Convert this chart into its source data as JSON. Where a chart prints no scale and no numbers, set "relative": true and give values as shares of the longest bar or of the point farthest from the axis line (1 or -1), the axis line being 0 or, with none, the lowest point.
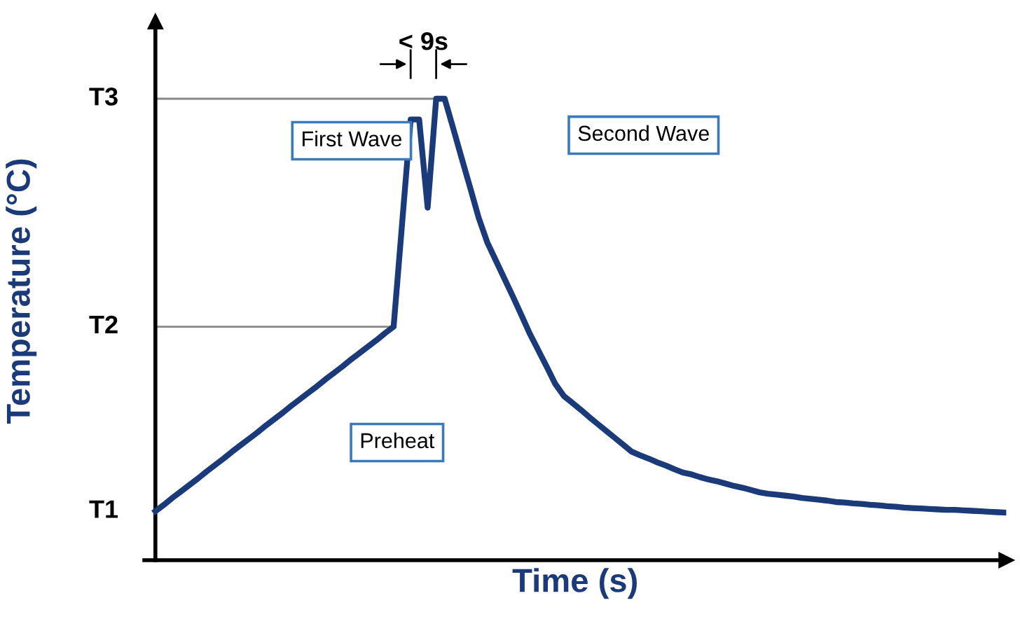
{
  "chart_data": {
    "type": "line",
    "relative": true,
    "xlabel": "Time (s)",
    "ylabel": "Temperature (°C)",
    "categories": [
      null,
      null,
      null,
      null,
      null,
      null,
      null,
      null,
      null,
      null,
      null,
      null,
      null,
      null,
      null,
      null,
      null,
      null,
      null,
      null,
      null,
      null,
      null,
      null,
      null,
      null,
      null,
      null,
      null,
      null,
      null,
      null,
      null,
      null,
      null,
      null,
      null,
      null,
      null,
      null,
      null,
      null,
      null,
      null,
      null,
      null,
      null,
      null,
      null,
      null,
      null,
      null,
      null,
      null,
      null,
      null,
      null,
      null,
      null,
      null,
      null,
      null,
      null,
      null,
      null,
      null,
      null,
      null,
      null,
      null,
      null,
      null,
      null,
      null,
      null,
      null,
      null,
      null,
      null,
      null,
      null,
      null,
      null,
      null,
      null,
      null,
      null,
      null,
      null,
      null,
      null,
      null,
      null,
      null,
      null,
      null,
      null,
      null,
      null,
      null,
      null
    ],
    "series": [
      {
        "color": "#1b3a7a",
        "values": [
          0.106,
          0.12,
          0.135,
          0.149,
          0.163,
          0.177,
          0.192,
          0.206,
          0.22,
          0.235,
          0.249,
          0.263,
          0.277,
          0.292,
          0.306,
          0.32,
          0.335,
          0.349,
          0.363,
          0.377,
          0.392,
          0.406,
          0.42,
          0.435,
          0.449,
          0.463,
          0.477,
          0.492,
          0.506,
          0.73,
          0.955,
          0.955,
          0.764,
          1.0,
          1.0,
          0.936,
          0.871,
          0.807,
          0.742,
          0.689,
          0.65,
          0.611,
          0.572,
          0.532,
          0.491,
          0.455,
          0.419,
          0.382,
          0.356,
          0.341,
          0.326,
          0.31,
          0.295,
          0.28,
          0.265,
          0.25,
          0.235,
          0.227,
          0.22,
          0.212,
          0.205,
          0.197,
          0.19,
          0.186,
          0.18,
          0.175,
          0.171,
          0.166,
          0.161,
          0.157,
          0.152,
          0.147,
          0.144,
          0.142,
          0.14,
          0.138,
          0.135,
          0.133,
          0.131,
          0.129,
          0.126,
          0.125,
          0.123,
          0.122,
          0.12,
          0.119,
          0.117,
          0.116,
          0.114,
          0.113,
          0.112,
          0.111,
          0.11,
          0.109,
          0.109,
          0.108,
          0.107,
          0.106,
          0.105,
          0.104,
          0.103
        ]
      }
    ],
    "ref_lines": [
      {
        "axis": "y",
        "value": 0.506,
        "label": "T2",
        "color": "#888888"
      },
      {
        "axis": "y",
        "value": 1.0,
        "label": "T3",
        "color": "#888888"
      }
    ],
    "annotations": [
      "< 9s",
      "First Wave",
      "Second Wave",
      "Preheat",
      "T1"
    ]
  }
}
